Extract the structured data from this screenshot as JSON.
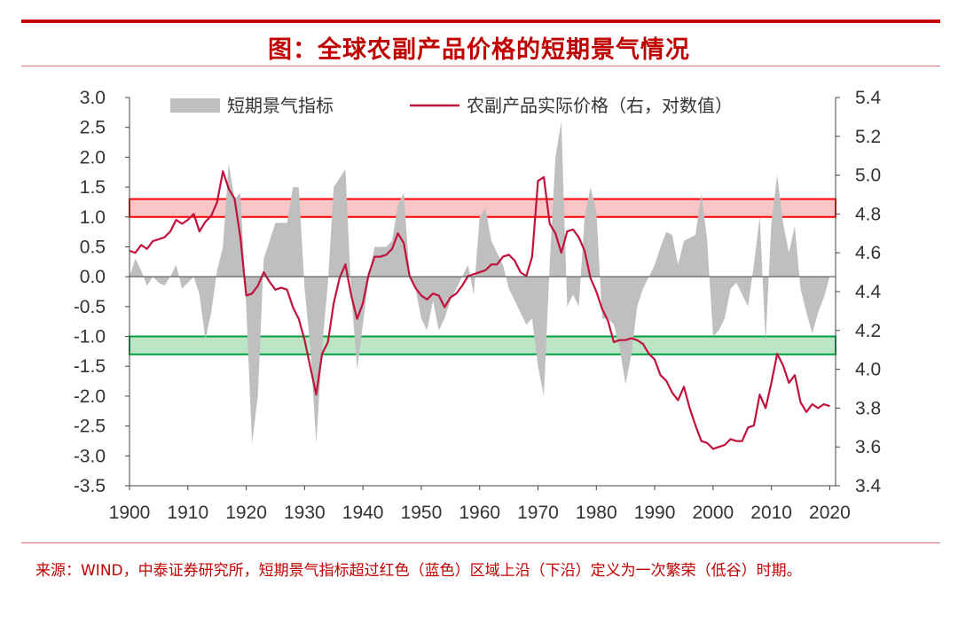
{
  "title": "图：全球农副产品价格的短期景气情况",
  "source": "来源：WIND，中泰证券研究所，短期景气指标超过红色（蓝色）区域上沿（下沿）定义为一次繁荣（低谷）时期。",
  "colors": {
    "accent": "#c00000",
    "area": "#bfbfbf",
    "line": "#c0123c",
    "boom_band_fill": "#f4a0a0",
    "boom_band_stroke": "#ff0000",
    "trough_band_fill": "#8fd4a0",
    "trough_band_stroke": "#00a040"
  },
  "chart_data": {
    "type": "area+line",
    "legend": [
      "短期景气指标",
      "农副产品实际价格（右，对数值）"
    ],
    "legend_position": "top",
    "x_ticks": [
      1900,
      1910,
      1920,
      1930,
      1940,
      1950,
      1960,
      1970,
      1980,
      1990,
      2000,
      2010,
      2020
    ],
    "xlim": [
      1900,
      2021
    ],
    "y_left": {
      "ticks": [
        "3.0",
        "2.5",
        "2.0",
        "1.5",
        "1.0",
        "0.5",
        "0.0",
        "-0.5",
        "-1.0",
        "-1.5",
        "-2.0",
        "-2.5",
        "-3.0",
        "-3.5"
      ],
      "ylim": [
        -3.5,
        3.0
      ]
    },
    "y_right": {
      "ticks": [
        "5.4",
        "5.2",
        "5.0",
        "4.8",
        "4.6",
        "4.4",
        "4.2",
        "4.0",
        "3.8",
        "3.6",
        "3.4"
      ],
      "ylim": [
        3.4,
        5.4
      ]
    },
    "bands": [
      {
        "name": "boom",
        "y_from": 1.0,
        "y_to": 1.3
      },
      {
        "name": "trough",
        "y_from": -1.3,
        "y_to": -1.0
      }
    ],
    "series": [
      {
        "name": "短期景气指标",
        "axis": "left",
        "type": "area",
        "x": [
          1900,
          1901,
          1902,
          1903,
          1904,
          1905,
          1906,
          1907,
          1908,
          1909,
          1910,
          1911,
          1912,
          1913,
          1914,
          1915,
          1916,
          1917,
          1918,
          1919,
          1920,
          1921,
          1922,
          1923,
          1924,
          1925,
          1926,
          1927,
          1928,
          1929,
          1930,
          1931,
          1932,
          1933,
          1934,
          1935,
          1936,
          1937,
          1938,
          1939,
          1940,
          1941,
          1942,
          1943,
          1944,
          1945,
          1946,
          1947,
          1948,
          1949,
          1950,
          1951,
          1952,
          1953,
          1954,
          1955,
          1956,
          1957,
          1958,
          1959,
          1960,
          1961,
          1962,
          1963,
          1964,
          1965,
          1966,
          1967,
          1968,
          1969,
          1970,
          1971,
          1972,
          1973,
          1974,
          1975,
          1976,
          1977,
          1978,
          1979,
          1980,
          1981,
          1982,
          1983,
          1984,
          1985,
          1986,
          1987,
          1988,
          1989,
          1990,
          1991,
          1992,
          1993,
          1994,
          1995,
          1996,
          1997,
          1998,
          1999,
          2000,
          2001,
          2002,
          2003,
          2004,
          2005,
          2006,
          2007,
          2008,
          2009,
          2010,
          2011,
          2012,
          2013,
          2014,
          2015,
          2016,
          2017,
          2018,
          2019,
          2020
        ],
        "y": [
          0.0,
          0.3,
          0.1,
          -0.15,
          0.0,
          -0.1,
          -0.15,
          0.0,
          0.2,
          -0.2,
          -0.1,
          0.0,
          -0.3,
          -1.05,
          -0.6,
          0.1,
          0.5,
          1.9,
          1.3,
          1.4,
          -0.5,
          -2.8,
          -2.0,
          0.3,
          0.6,
          0.9,
          0.9,
          0.9,
          1.5,
          1.5,
          -0.2,
          -1.2,
          -2.8,
          -1.2,
          -0.1,
          1.5,
          1.65,
          1.8,
          -0.3,
          -1.55,
          -0.8,
          0.0,
          0.5,
          0.5,
          0.5,
          0.6,
          1.2,
          1.4,
          0.0,
          -0.2,
          -0.7,
          -0.9,
          -0.4,
          -0.9,
          -0.7,
          -0.4,
          -0.2,
          0.0,
          0.2,
          -0.3,
          1.0,
          1.15,
          0.6,
          0.4,
          0.2,
          -0.2,
          -0.4,
          -0.6,
          -0.8,
          -0.7,
          -1.5,
          -2.0,
          0.2,
          2.0,
          2.6,
          -0.5,
          -0.3,
          -0.5,
          1.0,
          1.5,
          1.1,
          -0.7,
          -0.7,
          -0.8,
          -1.2,
          -1.8,
          -1.3,
          -0.5,
          -0.2,
          0.0,
          0.2,
          0.5,
          0.75,
          0.7,
          0.2,
          0.6,
          0.65,
          0.7,
          1.4,
          0.6,
          -1.0,
          -0.9,
          -0.7,
          -0.2,
          -0.1,
          -0.3,
          -0.5,
          0.2,
          1.0,
          -1.1,
          0.9,
          1.7,
          0.9,
          0.4,
          0.85,
          -0.2,
          -0.6,
          -0.95,
          -0.6,
          -0.35,
          0.0
        ]
      },
      {
        "name": "农副产品实际价格（右，对数值）",
        "axis": "right",
        "type": "line",
        "x": [
          1900,
          1901,
          1902,
          1903,
          1904,
          1905,
          1906,
          1907,
          1908,
          1909,
          1910,
          1911,
          1912,
          1913,
          1914,
          1915,
          1916,
          1917,
          1918,
          1919,
          1920,
          1921,
          1922,
          1923,
          1924,
          1925,
          1926,
          1927,
          1928,
          1929,
          1930,
          1931,
          1932,
          1933,
          1934,
          1935,
          1936,
          1937,
          1938,
          1939,
          1940,
          1941,
          1942,
          1943,
          1944,
          1945,
          1946,
          1947,
          1948,
          1949,
          1950,
          1951,
          1952,
          1953,
          1954,
          1955,
          1956,
          1957,
          1958,
          1959,
          1960,
          1961,
          1962,
          1963,
          1964,
          1965,
          1966,
          1967,
          1968,
          1969,
          1970,
          1971,
          1972,
          1973,
          1974,
          1975,
          1976,
          1977,
          1978,
          1979,
          1980,
          1981,
          1982,
          1983,
          1984,
          1985,
          1986,
          1987,
          1988,
          1989,
          1990,
          1991,
          1992,
          1993,
          1994,
          1995,
          1996,
          1997,
          1998,
          1999,
          2000,
          2001,
          2002,
          2003,
          2004,
          2005,
          2006,
          2007,
          2008,
          2009,
          2010,
          2011,
          2012,
          2013,
          2014,
          2015,
          2016,
          2017,
          2018,
          2019,
          2020
        ],
        "y": [
          4.61,
          4.6,
          4.64,
          4.62,
          4.66,
          4.67,
          4.68,
          4.71,
          4.77,
          4.75,
          4.77,
          4.8,
          4.71,
          4.76,
          4.79,
          4.86,
          5.02,
          4.93,
          4.88,
          4.68,
          4.38,
          4.39,
          4.43,
          4.5,
          4.45,
          4.41,
          4.42,
          4.41,
          4.32,
          4.26,
          4.15,
          4.01,
          3.87,
          4.08,
          4.14,
          4.34,
          4.47,
          4.54,
          4.38,
          4.26,
          4.34,
          4.49,
          4.58,
          4.58,
          4.59,
          4.62,
          4.7,
          4.65,
          4.48,
          4.42,
          4.38,
          4.36,
          4.39,
          4.38,
          4.32,
          4.37,
          4.39,
          4.43,
          4.48,
          4.49,
          4.5,
          4.51,
          4.54,
          4.54,
          4.58,
          4.59,
          4.56,
          4.5,
          4.48,
          4.58,
          4.97,
          4.99,
          4.75,
          4.7,
          4.6,
          4.71,
          4.72,
          4.68,
          4.61,
          4.47,
          4.4,
          4.31,
          4.25,
          4.14,
          4.15,
          4.15,
          4.16,
          4.15,
          4.13,
          4.08,
          4.05,
          3.97,
          3.94,
          3.88,
          3.84,
          3.91,
          3.8,
          3.71,
          3.63,
          3.62,
          3.59,
          3.6,
          3.61,
          3.64,
          3.63,
          3.63,
          3.7,
          3.71,
          3.87,
          3.8,
          3.93,
          4.08,
          4.02,
          3.93,
          3.97,
          3.83,
          3.78,
          3.82,
          3.8,
          3.82,
          3.81
        ]
      }
    ]
  }
}
